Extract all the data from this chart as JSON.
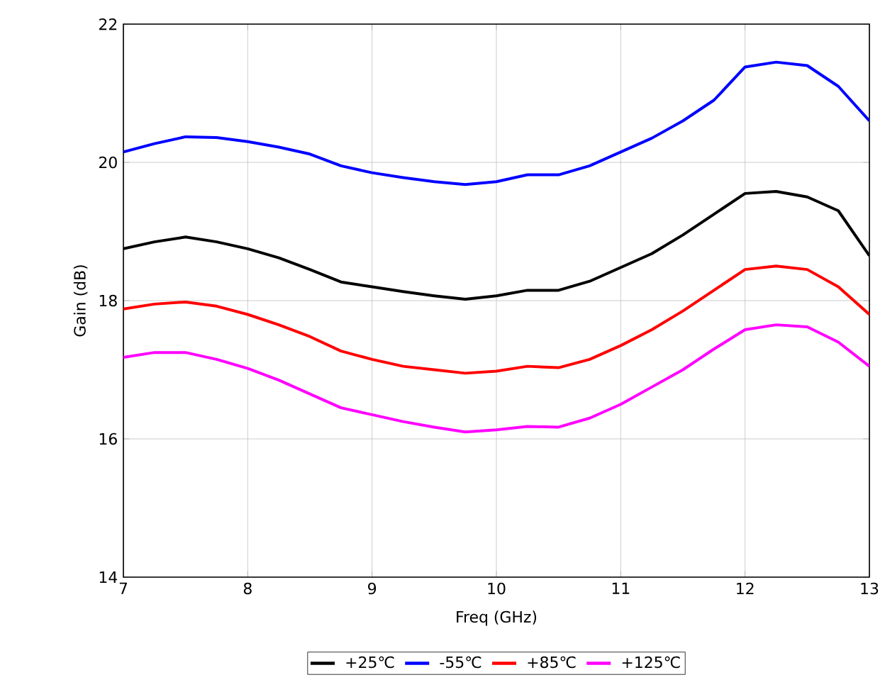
{
  "chart_data": {
    "type": "line",
    "xlabel": "Freq (GHz)",
    "ylabel": "Gain (dB)",
    "x": [
      7.0,
      7.25,
      7.5,
      7.75,
      8.0,
      8.25,
      8.5,
      8.75,
      9.0,
      9.25,
      9.5,
      9.75,
      10.0,
      10.25,
      10.5,
      10.75,
      11.0,
      11.25,
      11.5,
      11.75,
      12.0,
      12.25,
      12.5,
      12.75,
      13.0
    ],
    "series": [
      {
        "name": "+25℃",
        "color": "#000000",
        "values": [
          18.75,
          18.85,
          18.92,
          18.85,
          18.75,
          18.62,
          18.45,
          18.27,
          18.2,
          18.13,
          18.07,
          18.02,
          18.07,
          18.15,
          18.15,
          18.28,
          18.48,
          18.68,
          18.95,
          19.25,
          19.55,
          19.58,
          19.5,
          19.3,
          18.65
        ]
      },
      {
        "name": "-55℃",
        "color": "#0000ff",
        "values": [
          20.15,
          20.27,
          20.37,
          20.36,
          20.3,
          20.22,
          20.12,
          19.95,
          19.85,
          19.78,
          19.72,
          19.68,
          19.72,
          19.82,
          19.82,
          19.95,
          20.15,
          20.35,
          20.6,
          20.9,
          21.38,
          21.45,
          21.4,
          21.1,
          20.6
        ]
      },
      {
        "name": "+85℃",
        "color": "#ff0000",
        "values": [
          17.88,
          17.95,
          17.98,
          17.92,
          17.8,
          17.65,
          17.48,
          17.27,
          17.15,
          17.05,
          17.0,
          16.95,
          16.98,
          17.05,
          17.03,
          17.15,
          17.35,
          17.58,
          17.85,
          18.15,
          18.45,
          18.5,
          18.45,
          18.2,
          17.8
        ]
      },
      {
        "name": "+125℃",
        "color": "#ff00ff",
        "values": [
          17.18,
          17.25,
          17.25,
          17.15,
          17.02,
          16.85,
          16.65,
          16.45,
          16.35,
          16.25,
          16.17,
          16.1,
          16.13,
          16.18,
          16.17,
          16.3,
          16.5,
          16.75,
          17.0,
          17.3,
          17.58,
          17.65,
          17.62,
          17.4,
          17.05
        ]
      }
    ],
    "xlim": [
      7,
      13
    ],
    "ylim": [
      14,
      22
    ],
    "xticks": [
      7,
      8,
      9,
      10,
      11,
      12,
      13
    ],
    "yticks": [
      14,
      16,
      18,
      20,
      22
    ],
    "grid": true,
    "legend": "bottom",
    "marker": "none",
    "line_style": "solid"
  }
}
